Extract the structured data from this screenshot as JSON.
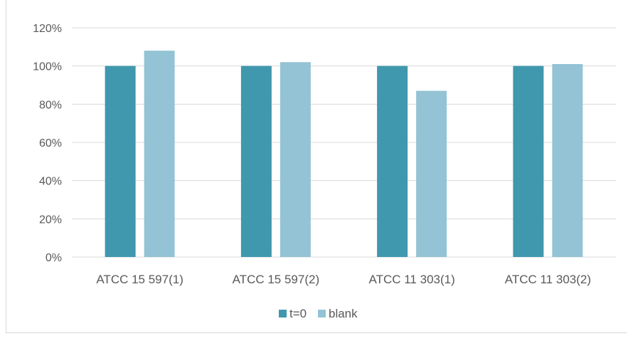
{
  "chart_data": {
    "type": "bar",
    "categories": [
      "ATCC 15 597(1)",
      "ATCC 15 597(2)",
      "ATCC 11 303(1)",
      "ATCC 11 303(2)"
    ],
    "series": [
      {
        "name": "t=0",
        "values": [
          1.0,
          1.0,
          1.0,
          1.0
        ],
        "color": "#3f98ae"
      },
      {
        "name": "blank",
        "values": [
          1.08,
          1.02,
          0.87,
          1.01
        ],
        "color": "#93c3d5"
      }
    ],
    "ylim": [
      0,
      1.2
    ],
    "yticks": [
      0,
      0.2,
      0.4,
      0.6,
      0.8,
      1.0,
      1.2
    ],
    "ytick_labels": [
      "0%",
      "20%",
      "40%",
      "60%",
      "80%",
      "100%",
      "120%"
    ],
    "grid": true,
    "legend_position": "bottom",
    "title": "",
    "xlabel": "",
    "ylabel": ""
  }
}
